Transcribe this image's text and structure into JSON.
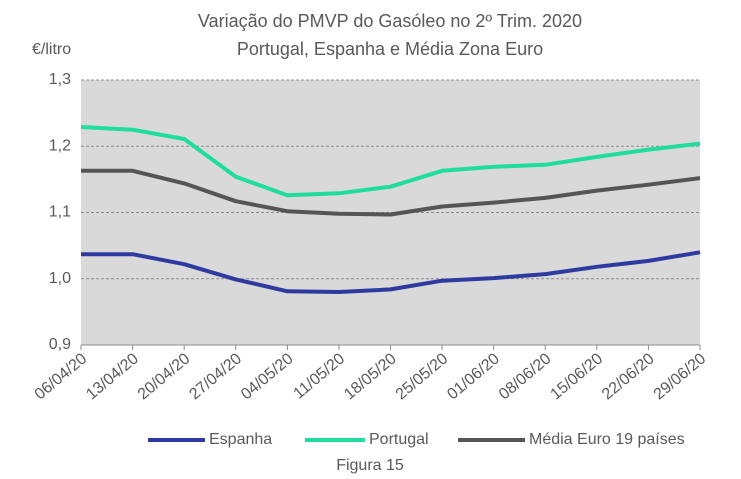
{
  "chart_data": {
    "type": "line",
    "title": "Variação do PMVP do Gasóleo no 2º Trim. 2020",
    "subtitle": "Portugal, Espanha e Média Zona Euro",
    "y_label": "€/litro",
    "caption": "Figura 15",
    "categories": [
      "06/04/20",
      "13/04/20",
      "20/04/20",
      "27/04/20",
      "04/05/20",
      "11/05/20",
      "18/05/20",
      "25/05/20",
      "01/06/20",
      "08/06/20",
      "15/06/20",
      "22/06/20",
      "29/06/20"
    ],
    "series": [
      {
        "name": "Espanha",
        "color": "#2e3a9f",
        "values": [
          1.037,
          1.037,
          1.022,
          0.999,
          0.981,
          0.98,
          0.984,
          0.997,
          1.001,
          1.007,
          1.018,
          1.027,
          1.04
        ]
      },
      {
        "name": "Portugal",
        "color": "#1fdc9f",
        "values": [
          1.229,
          1.225,
          1.211,
          1.154,
          1.126,
          1.129,
          1.139,
          1.163,
          1.169,
          1.172,
          1.184,
          1.195,
          1.204
        ]
      },
      {
        "name": "Média Euro 19 países",
        "color": "#555555",
        "values": [
          1.163,
          1.163,
          1.144,
          1.117,
          1.102,
          1.098,
          1.097,
          1.109,
          1.115,
          1.122,
          1.133,
          1.142,
          1.152
        ]
      }
    ],
    "ylim": [
      0.9,
      1.3
    ],
    "yticks": [
      {
        "value": 0.9,
        "label": "0,9"
      },
      {
        "value": 1.0,
        "label": "1,0"
      },
      {
        "value": 1.1,
        "label": "1,1"
      },
      {
        "value": 1.2,
        "label": "1,2"
      },
      {
        "value": 1.3,
        "label": "1,3"
      }
    ],
    "grid": true,
    "plot_background": "#d9d9d9",
    "legend": "bottom"
  }
}
